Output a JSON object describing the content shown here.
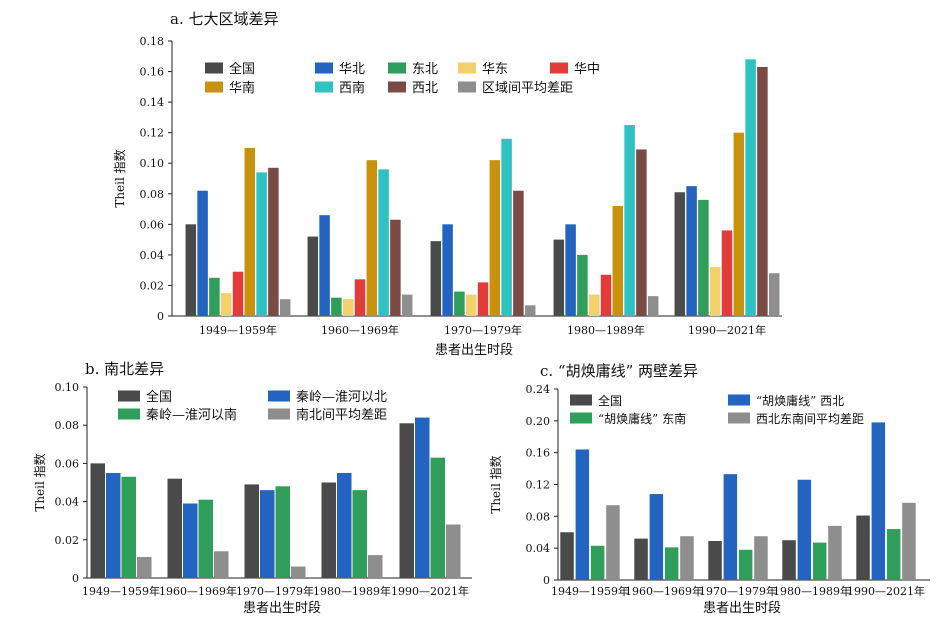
{
  "chart_data": [
    {
      "id": "a",
      "type": "bar",
      "title": "a. 七大区域差异",
      "xlabel": "患者出生时段",
      "ylabel": "Theil 指数",
      "ylim": [
        0,
        0.18
      ],
      "yticks": [
        "0",
        "0.02",
        "0.04",
        "0.06",
        "0.08",
        "0.10",
        "0.12",
        "0.14",
        "0.16",
        "0.18"
      ],
      "categories": [
        "1949—1959年",
        "1960—1969年",
        "1970—1979年",
        "1980—1989年",
        "1990—2021年"
      ],
      "legend_position": "top",
      "grid": false,
      "series": [
        {
          "name": "全国",
          "color": "#4a4a4a",
          "values": [
            0.06,
            0.052,
            0.049,
            0.05,
            0.081
          ]
        },
        {
          "name": "华北",
          "color": "#2364c0",
          "values": [
            0.082,
            0.066,
            0.06,
            0.06,
            0.085
          ]
        },
        {
          "name": "东北",
          "color": "#2e9e5a",
          "values": [
            0.025,
            0.012,
            0.016,
            0.04,
            0.076
          ]
        },
        {
          "name": "华东",
          "color": "#f2d06b",
          "values": [
            0.015,
            0.011,
            0.014,
            0.014,
            0.032
          ]
        },
        {
          "name": "华中",
          "color": "#e13b3b",
          "values": [
            0.029,
            0.024,
            0.022,
            0.027,
            0.056
          ]
        },
        {
          "name": "华南",
          "color": "#c8920e",
          "values": [
            0.11,
            0.102,
            0.102,
            0.072,
            0.12
          ]
        },
        {
          "name": "西南",
          "color": "#2ec2c2",
          "values": [
            0.094,
            0.096,
            0.116,
            0.125,
            0.168
          ]
        },
        {
          "name": "西北",
          "color": "#7b4a45",
          "values": [
            0.097,
            0.063,
            0.082,
            0.109,
            0.163
          ]
        },
        {
          "name": "区域间平均差距",
          "color": "#8e8e8e",
          "values": [
            0.011,
            0.014,
            0.007,
            0.013,
            0.028
          ]
        }
      ]
    },
    {
      "id": "b",
      "type": "bar",
      "title": "b. 南北差异",
      "xlabel": "患者出生时段",
      "ylabel": "Theil 指数",
      "ylim": [
        0,
        0.1
      ],
      "yticks": [
        "0",
        "0.02",
        "0.04",
        "0.06",
        "0.08",
        "0.10"
      ],
      "categories": [
        "1949—1959年",
        "1960—1969年",
        "1970—1979年",
        "1980—1989年",
        "1990—2021年"
      ],
      "legend_position": "top",
      "grid": false,
      "series": [
        {
          "name": "全国",
          "color": "#4a4a4a",
          "values": [
            0.06,
            0.052,
            0.049,
            0.05,
            0.081
          ]
        },
        {
          "name": "秦岭—淮河以北",
          "color": "#2364c0",
          "values": [
            0.055,
            0.039,
            0.046,
            0.055,
            0.084
          ]
        },
        {
          "name": "秦岭—淮河以南",
          "color": "#2e9e5a",
          "values": [
            0.053,
            0.041,
            0.048,
            0.046,
            0.063
          ]
        },
        {
          "name": "南北间平均差距",
          "color": "#8e8e8e",
          "values": [
            0.011,
            0.014,
            0.006,
            0.012,
            0.028
          ]
        }
      ]
    },
    {
      "id": "c",
      "type": "bar",
      "title": "c. “胡焕庸线” 两壁差异",
      "xlabel": "患者出生时段",
      "ylabel": "Theil 指数",
      "ylim": [
        0,
        0.24
      ],
      "yticks": [
        "0",
        "0.04",
        "0.08",
        "0.12",
        "0.16",
        "0.20",
        "0.24"
      ],
      "categories": [
        "1949—1959年",
        "1960—1969年",
        "1970—1979年",
        "1980—1989年",
        "1990—2021年"
      ],
      "legend_position": "top",
      "grid": false,
      "series": [
        {
          "name": "全国",
          "color": "#4a4a4a",
          "values": [
            0.06,
            0.052,
            0.049,
            0.05,
            0.081
          ]
        },
        {
          "name": "“胡焕庸线” 西北",
          "color": "#2364c0",
          "values": [
            0.164,
            0.108,
            0.133,
            0.126,
            0.198
          ]
        },
        {
          "name": "“胡焕庸线” 东南",
          "color": "#2e9e5a",
          "values": [
            0.043,
            0.041,
            0.038,
            0.047,
            0.064
          ]
        },
        {
          "name": "西北东南间平均差距",
          "color": "#8e8e8e",
          "values": [
            0.094,
            0.055,
            0.055,
            0.068,
            0.097
          ]
        }
      ]
    }
  ]
}
